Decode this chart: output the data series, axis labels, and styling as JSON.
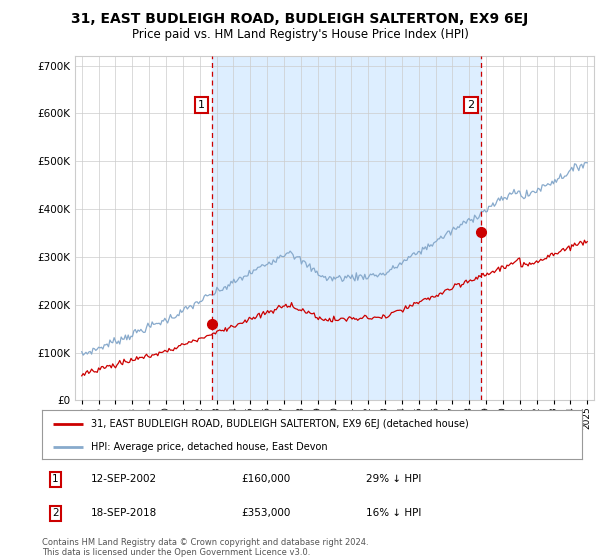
{
  "title": "31, EAST BUDLEIGH ROAD, BUDLEIGH SALTERTON, EX9 6EJ",
  "subtitle": "Price paid vs. HM Land Registry's House Price Index (HPI)",
  "title_fontsize": 10,
  "subtitle_fontsize": 8.5,
  "ylim": [
    0,
    720000
  ],
  "yticks": [
    0,
    100000,
    200000,
    300000,
    400000,
    500000,
    600000,
    700000
  ],
  "xlim": [
    1994.6,
    2025.4
  ],
  "xticks": [
    1995,
    1996,
    1997,
    1998,
    1999,
    2000,
    2001,
    2002,
    2003,
    2004,
    2005,
    2006,
    2007,
    2008,
    2009,
    2010,
    2011,
    2012,
    2013,
    2014,
    2015,
    2016,
    2017,
    2018,
    2019,
    2020,
    2021,
    2022,
    2023,
    2024,
    2025
  ],
  "purchase1_x": 2002.71,
  "purchase1_y": 160000,
  "purchase2_x": 2018.71,
  "purchase2_y": 353000,
  "red_color": "#cc0000",
  "blue_color": "#88aacc",
  "shade_color": "#ddeeff",
  "dashed_color": "#cc0000",
  "grid_color": "#cccccc",
  "legend_label1": "31, EAST BUDLEIGH ROAD, BUDLEIGH SALTERTON, EX9 6EJ (detached house)",
  "legend_label2": "HPI: Average price, detached house, East Devon",
  "table_row1_num": "1",
  "table_row1_date": "12-SEP-2002",
  "table_row1_price": "£160,000",
  "table_row1_hpi": "29% ↓ HPI",
  "table_row2_num": "2",
  "table_row2_date": "18-SEP-2018",
  "table_row2_price": "£353,000",
  "table_row2_hpi": "16% ↓ HPI",
  "footer_line1": "Contains HM Land Registry data © Crown copyright and database right 2024.",
  "footer_line2": "This data is licensed under the Open Government Licence v3.0.",
  "bg_color": "#ffffff",
  "marker_edge_color": "#cc0000",
  "chart_bg": "#f8f8ff"
}
